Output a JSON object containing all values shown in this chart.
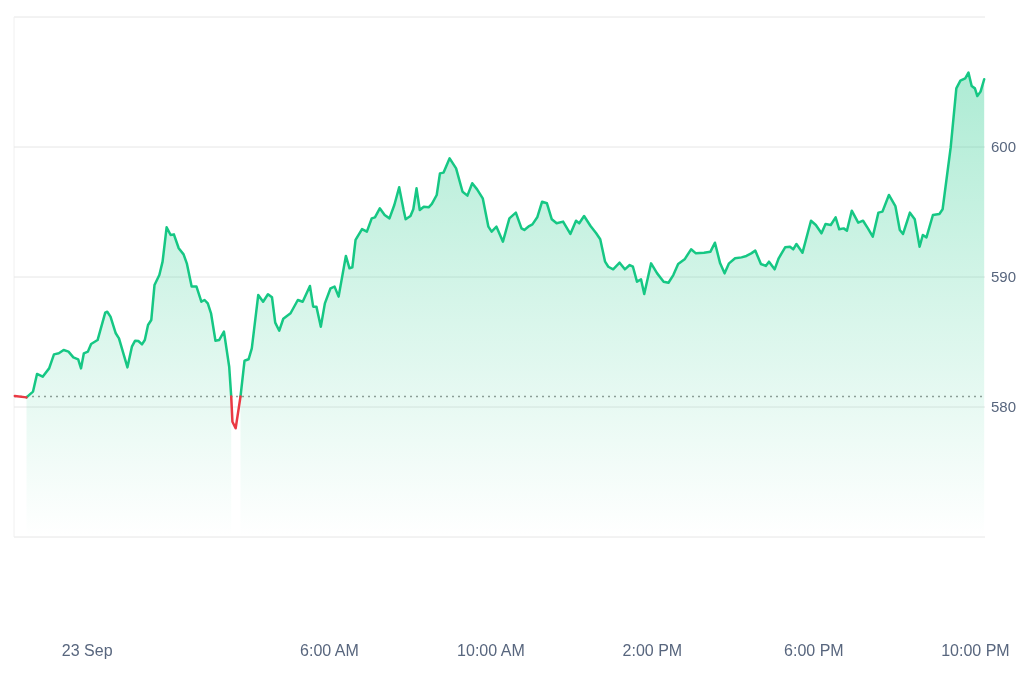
{
  "chart_data": {
    "type": "area",
    "xlim": [
      -1.8,
      22.25
    ],
    "xticks": [
      {
        "value": 0,
        "label": "23 Sep"
      },
      {
        "value": 6,
        "label": "6:00 AM"
      },
      {
        "value": 10,
        "label": "10:00 AM"
      },
      {
        "value": 14,
        "label": "2:00 PM"
      },
      {
        "value": 18,
        "label": "6:00 PM"
      },
      {
        "value": 22,
        "label": "10:00 PM"
      }
    ],
    "ylim": [
      570,
      610
    ],
    "yticks": [
      580,
      590,
      600
    ],
    "grid": "y",
    "ref_lines": [
      {
        "axis": "y",
        "value": 580.8,
        "color": "#999999",
        "line_style": "dotted"
      }
    ],
    "series": [
      {
        "color": "#16c784",
        "x": [
          -1.49,
          -1.33,
          -1.23,
          -1.09,
          -0.93,
          -0.81,
          -0.69,
          -0.57,
          -0.45,
          -0.33,
          -0.21,
          -0.14,
          -0.07,
          0.03,
          0.11,
          0.27,
          0.46,
          0.51,
          0.59,
          0.72,
          0.8,
          1.01,
          1.12,
          1.2,
          1.28,
          1.37,
          1.44,
          1.52,
          1.6,
          1.68,
          1.8,
          1.88,
          1.98,
          2.08,
          2.16,
          2.28,
          2.4,
          2.48,
          2.6,
          2.72,
          2.84,
          2.92,
          3.0,
          3.08,
          3.19,
          3.28,
          3.4,
          3.53,
          3.58,
          3.61,
          3.69,
          3.81,
          3.91,
          4.01,
          4.09,
          4.25,
          4.37,
          4.49,
          4.59,
          4.67,
          4.77,
          4.87,
          5.05,
          5.23,
          5.35,
          5.53,
          5.61,
          5.69,
          5.8,
          5.9,
          6.04,
          6.14,
          6.24,
          6.42,
          6.51,
          6.58,
          6.66,
          6.82,
          6.94,
          7.06,
          7.14,
          7.26,
          7.38,
          7.5,
          7.62,
          7.74,
          7.85,
          7.9,
          8.02,
          8.09,
          8.17,
          8.25,
          8.35,
          8.47,
          8.55,
          8.67,
          8.75,
          8.84,
          8.99,
          9.15,
          9.31,
          9.43,
          9.55,
          9.67,
          9.81,
          9.95,
          10.03,
          10.15,
          10.31,
          10.47,
          10.63,
          10.77,
          10.84,
          10.96,
          11.04,
          11.16,
          11.28,
          11.4,
          11.52,
          11.64,
          11.8,
          11.98,
          12.12,
          12.2,
          12.32,
          12.48,
          12.62,
          12.72,
          12.84,
          12.92,
          13.04,
          13.2,
          13.33,
          13.45,
          13.53,
          13.63,
          13.73,
          13.81,
          13.98,
          14.13,
          14.29,
          14.41,
          14.53,
          14.65,
          14.81,
          14.97,
          15.09,
          15.29,
          15.45,
          15.56,
          15.69,
          15.8,
          15.91,
          16.06,
          16.22,
          16.34,
          16.46,
          16.56,
          16.7,
          16.82,
          16.9,
          17.04,
          17.14,
          17.3,
          17.42,
          17.5,
          17.58,
          17.73,
          17.94,
          18.06,
          18.2,
          18.3,
          18.43,
          18.55,
          18.64,
          18.75,
          18.83,
          18.95,
          19.11,
          19.23,
          19.35,
          19.47,
          19.61,
          19.71,
          19.87,
          20.03,
          20.14,
          20.22,
          20.39,
          20.51,
          20.63,
          20.71,
          20.8,
          20.96,
          21.12,
          21.2,
          21.4,
          21.54,
          21.64,
          21.76,
          21.84,
          21.92,
          22.0,
          22.06,
          22.14,
          22.23
        ],
        "values": [
          580.74,
          581.18,
          582.54,
          582.33,
          582.97,
          584.05,
          584.13,
          584.38,
          584.26,
          583.82,
          583.67,
          582.97,
          584.13,
          584.26,
          584.85,
          585.15,
          587.26,
          587.33,
          586.95,
          585.67,
          585.28,
          583.05,
          584.64,
          585.1,
          585.08,
          584.82,
          585.15,
          586.31,
          586.69,
          589.38,
          590.15,
          591.18,
          593.82,
          593.23,
          593.28,
          592.21,
          591.74,
          591.05,
          589.26,
          589.26,
          588.1,
          588.23,
          587.97,
          587.21,
          585.1,
          585.15,
          585.8,
          583.1,
          580.8,
          null,
          null,
          580.8,
          583.56,
          583.67,
          584.51,
          588.62,
          588.1,
          588.67,
          588.44,
          586.49,
          585.87,
          586.79,
          587.21,
          588.23,
          588.1,
          589.31,
          587.72,
          587.72,
          586.18,
          587.97,
          589.13,
          589.26,
          588.49,
          591.62,
          590.67,
          590.74,
          592.85,
          593.69,
          593.49,
          594.51,
          594.59,
          595.28,
          594.77,
          594.51,
          595.54,
          596.9,
          595.15,
          594.44,
          594.69,
          595.21,
          596.82,
          595.15,
          595.41,
          595.36,
          595.62,
          596.31,
          597.97,
          598.03,
          599.13,
          598.36,
          596.56,
          596.26,
          597.21,
          596.74,
          596.05,
          593.87,
          593.49,
          593.87,
          592.72,
          594.51,
          594.95,
          593.74,
          593.62,
          593.92,
          594.05,
          594.59,
          595.79,
          595.67,
          594.44,
          594.13,
          594.26,
          593.31,
          594.33,
          594.13,
          594.69,
          593.92,
          593.36,
          592.9,
          591.18,
          590.79,
          590.59,
          591.1,
          590.59,
          590.92,
          590.79,
          589.64,
          589.82,
          588.69,
          591.05,
          590.28,
          589.64,
          589.56,
          590.15,
          591.0,
          591.36,
          592.13,
          591.82,
          591.87,
          591.95,
          592.64,
          591.05,
          590.28,
          591.05,
          591.44,
          591.51,
          591.62,
          591.82,
          592.03,
          591.0,
          590.85,
          591.18,
          590.59,
          591.44,
          592.28,
          592.33,
          592.13,
          592.54,
          591.87,
          594.33,
          594.0,
          593.36,
          594.08,
          594.0,
          594.59,
          593.67,
          593.74,
          593.56,
          595.1,
          594.18,
          594.33,
          593.74,
          593.1,
          594.95,
          595.03,
          596.31,
          595.46,
          593.62,
          593.31,
          594.95,
          594.44,
          592.33,
          593.23,
          593.05,
          594.77,
          594.85,
          595.21,
          599.97,
          604.51,
          605.1,
          605.28,
          605.72,
          604.69,
          604.51,
          603.92,
          604.26,
          605.21
        ]
      },
      {
        "type": "line",
        "color": "#ea3943",
        "x": [
          -1.78,
          -1.49,
          0,
          3.58,
          3.61,
          3.69,
          3.81
        ],
        "values": [
          580.85,
          580.74,
          null,
          580.8,
          578.87,
          578.36,
          580.8
        ]
      }
    ]
  }
}
